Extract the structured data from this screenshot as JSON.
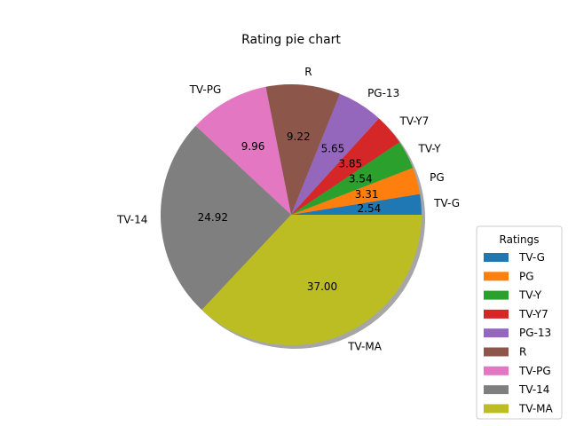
{
  "chart_data": {
    "type": "pie",
    "title": "Rating pie chart",
    "labels": [
      "TV-G",
      "PG",
      "TV-Y",
      "TV-Y7",
      "PG-13",
      "R",
      "TV-PG",
      "TV-14",
      "TV-MA"
    ],
    "values": [
      2.54,
      3.31,
      3.54,
      3.85,
      5.65,
      9.22,
      9.96,
      24.92,
      37.0
    ],
    "value_labels": [
      "2.54",
      "3.31",
      "3.54",
      "3.85",
      "5.65",
      "9.22",
      "9.96",
      "24.92",
      "37.00"
    ],
    "colors": [
      "#1f77b4",
      "#ff7f0e",
      "#2ca02c",
      "#d62728",
      "#9467bd",
      "#8c564b",
      "#e377c2",
      "#7f7f7f",
      "#bcbd22"
    ],
    "start_angle_deg": 0,
    "direction": "counterclockwise",
    "shadow": true,
    "legend": {
      "title": "Ratings",
      "placement": "lower-right, outside pie"
    }
  }
}
